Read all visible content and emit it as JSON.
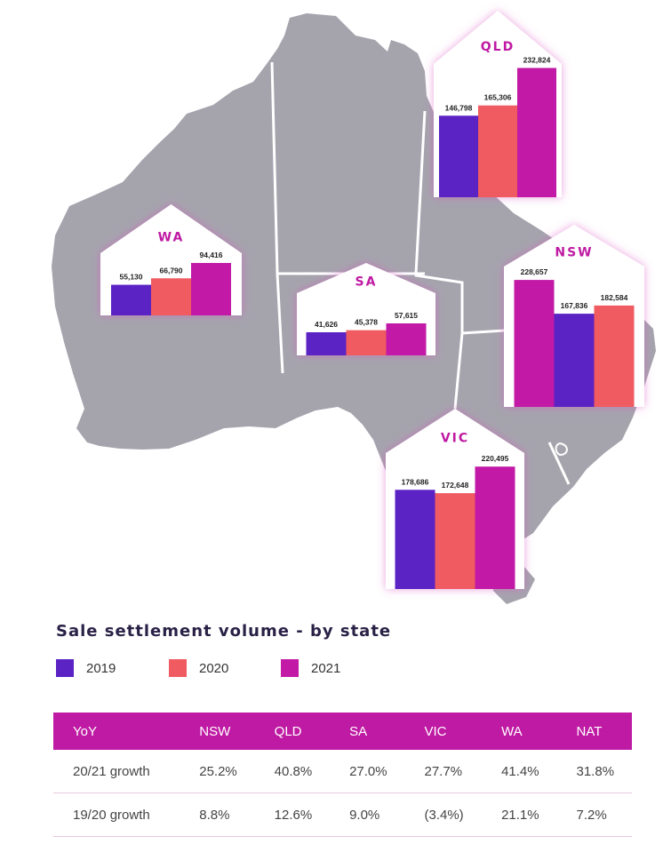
{
  "colors": {
    "y2019": "#5b22c4",
    "y2020": "#ef5b60",
    "y2021": "#c21aa7",
    "map": "#a5a4ad",
    "accent": "#bf1aa3"
  },
  "chart_data": {
    "type": "bar",
    "title": "Sale settlement volume - by state",
    "series_names": [
      "2019",
      "2020",
      "2021"
    ],
    "states": [
      {
        "name": "QLD",
        "values": [
          146798,
          165306,
          232824
        ],
        "labels": [
          "146,798",
          "165,306",
          "232,824"
        ]
      },
      {
        "name": "WA",
        "values": [
          55130,
          66790,
          94416
        ],
        "labels": [
          "55,130",
          "66,790",
          "94,416"
        ]
      },
      {
        "name": "SA",
        "values": [
          41626,
          45378,
          57615
        ],
        "labels": [
          "41,626",
          "45,378",
          "57,615"
        ]
      },
      {
        "name": "NSW",
        "values": [
          167836,
          182584,
          228657
        ],
        "labels": [
          "167,836",
          "182,584",
          "228,657"
        ],
        "bar_order": [
          2,
          0,
          1
        ]
      },
      {
        "name": "VIC",
        "values": [
          178686,
          172648,
          220495
        ],
        "labels": [
          "178,686",
          "172,648",
          "220,495"
        ]
      }
    ]
  },
  "legend": [
    {
      "label": "2019",
      "color": "#5b22c4"
    },
    {
      "label": "2020",
      "color": "#ef5b60"
    },
    {
      "label": "2021",
      "color": "#c21aa7"
    }
  ],
  "table": {
    "headers": [
      "YoY",
      "NSW",
      "QLD",
      "SA",
      "VIC",
      "WA",
      "NAT"
    ],
    "rows": [
      [
        "20/21 growth",
        "25.2%",
        "40.8%",
        "27.0%",
        "27.7%",
        "41.4%",
        "31.8%"
      ],
      [
        "19/20 growth",
        "8.8%",
        "12.6%",
        "9.0%",
        "(3.4%)",
        "21.1%",
        "7.2%"
      ]
    ]
  }
}
